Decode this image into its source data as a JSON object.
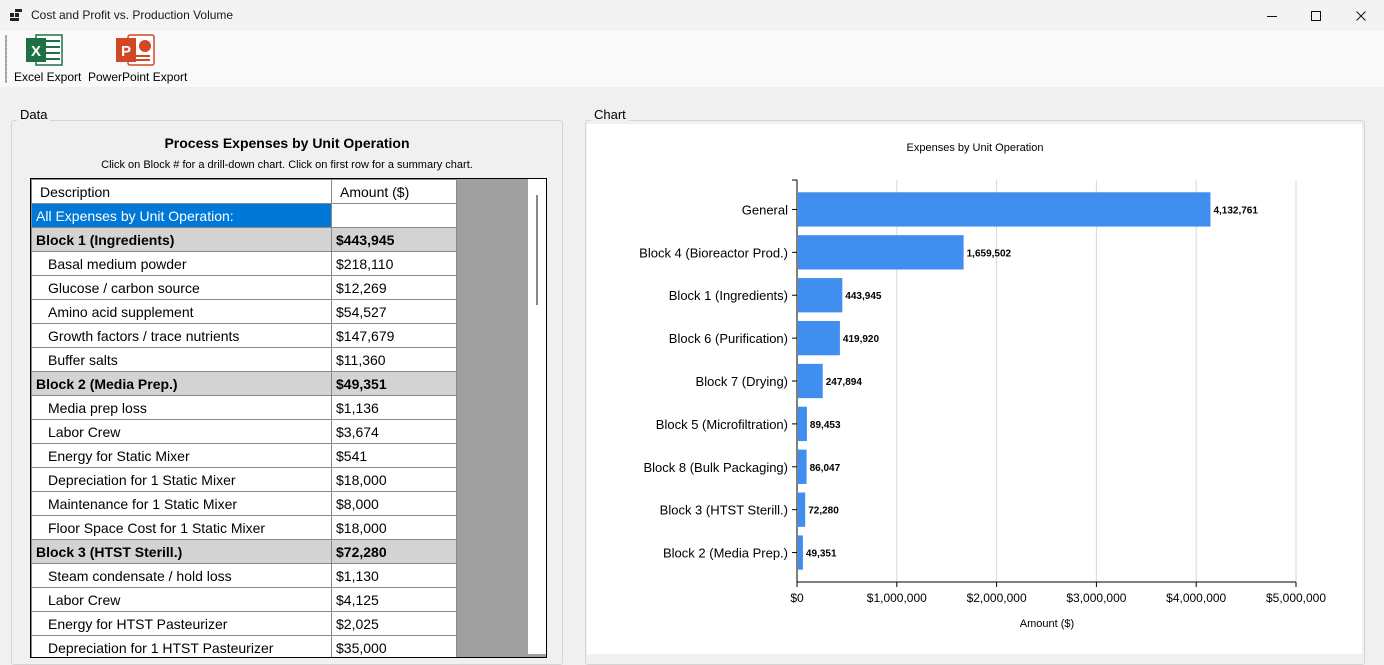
{
  "window": {
    "title": "Cost and Profit vs. Production Volume",
    "app_icon": "app-window-icon",
    "controls": [
      "minimize-icon",
      "maximize-icon",
      "close-icon"
    ]
  },
  "toolbar": {
    "excel_label": "Excel Export",
    "ppt_label": "PowerPoint Export",
    "excel_color": "#1e7145",
    "ppt_color": "#d24726"
  },
  "data_panel": {
    "group_label": "Data",
    "title": "Process Expenses by Unit Operation",
    "subtitle": "Click on Block # for a drill-down chart. Click on first row for a summary chart.",
    "columns": [
      "Description",
      "Amount ($)"
    ],
    "rows": [
      {
        "kind": "sum",
        "desc": "All Expenses by Unit Operation:",
        "amount": ""
      },
      {
        "kind": "block",
        "desc": "Block 1 (Ingredients)",
        "amount": "$443,945"
      },
      {
        "kind": "item",
        "desc": "Basal medium powder",
        "amount": "$218,110"
      },
      {
        "kind": "item",
        "desc": "Glucose / carbon source",
        "amount": "$12,269"
      },
      {
        "kind": "item",
        "desc": "Amino acid supplement",
        "amount": "$54,527"
      },
      {
        "kind": "item",
        "desc": "Growth factors / trace nutrients",
        "amount": "$147,679"
      },
      {
        "kind": "item",
        "desc": "Buffer salts",
        "amount": "$11,360"
      },
      {
        "kind": "block",
        "desc": "Block 2 (Media Prep.)",
        "amount": "$49,351"
      },
      {
        "kind": "item",
        "desc": "Media prep loss",
        "amount": "$1,136"
      },
      {
        "kind": "item",
        "desc": "Labor Crew",
        "amount": "$3,674"
      },
      {
        "kind": "item",
        "desc": "Energy for Static Mixer",
        "amount": "$541"
      },
      {
        "kind": "item",
        "desc": "Depreciation for 1 Static Mixer",
        "amount": "$18,000"
      },
      {
        "kind": "item",
        "desc": "Maintenance for 1 Static Mixer",
        "amount": "$8,000"
      },
      {
        "kind": "item",
        "desc": "Floor Space Cost for 1 Static Mixer",
        "amount": "$18,000"
      },
      {
        "kind": "block",
        "desc": "Block 3 (HTST Sterill.)",
        "amount": "$72,280"
      },
      {
        "kind": "item",
        "desc": "Steam condensate / hold loss",
        "amount": "$1,130"
      },
      {
        "kind": "item",
        "desc": "Labor Crew",
        "amount": "$4,125"
      },
      {
        "kind": "item",
        "desc": "Energy for HTST Pasteurizer",
        "amount": "$2,025"
      },
      {
        "kind": "item",
        "desc": "Depreciation for 1 HTST Pasteurizer",
        "amount": "$35,000"
      }
    ]
  },
  "chart_panel": {
    "group_label": "Chart"
  },
  "chart_data": {
    "type": "bar",
    "orientation": "horizontal",
    "title": "Expenses by Unit Operation",
    "xlabel": "Amount ($)",
    "ylabel": "",
    "categories": [
      "General",
      "Block 4 (Bioreactor Prod.)",
      "Block 1 (Ingredients)",
      "Block 6 (Purification)",
      "Block 7 (Drying)",
      "Block 5 (Microfiltration)",
      "Block 8 (Bulk Packaging)",
      "Block 3 (HTST Sterill.)",
      "Block 2 (Media Prep.)"
    ],
    "values": [
      4132761,
      1659502,
      443945,
      419920,
      247894,
      89453,
      86047,
      72280,
      49351
    ],
    "value_labels": [
      "4,132,761",
      "1,659,502",
      "443,945",
      "419,920",
      "247,894",
      "89,453",
      "86,047",
      "72,280",
      "49,351"
    ],
    "xlim": [
      0,
      5000000
    ],
    "xticks": [
      0,
      1000000,
      2000000,
      3000000,
      4000000,
      5000000
    ],
    "xtick_labels": [
      "$0",
      "$1,000,000",
      "$2,000,000",
      "$3,000,000",
      "$4,000,000",
      "$5,000,000"
    ],
    "grid": true,
    "bar_color": "#3f8ef0"
  }
}
